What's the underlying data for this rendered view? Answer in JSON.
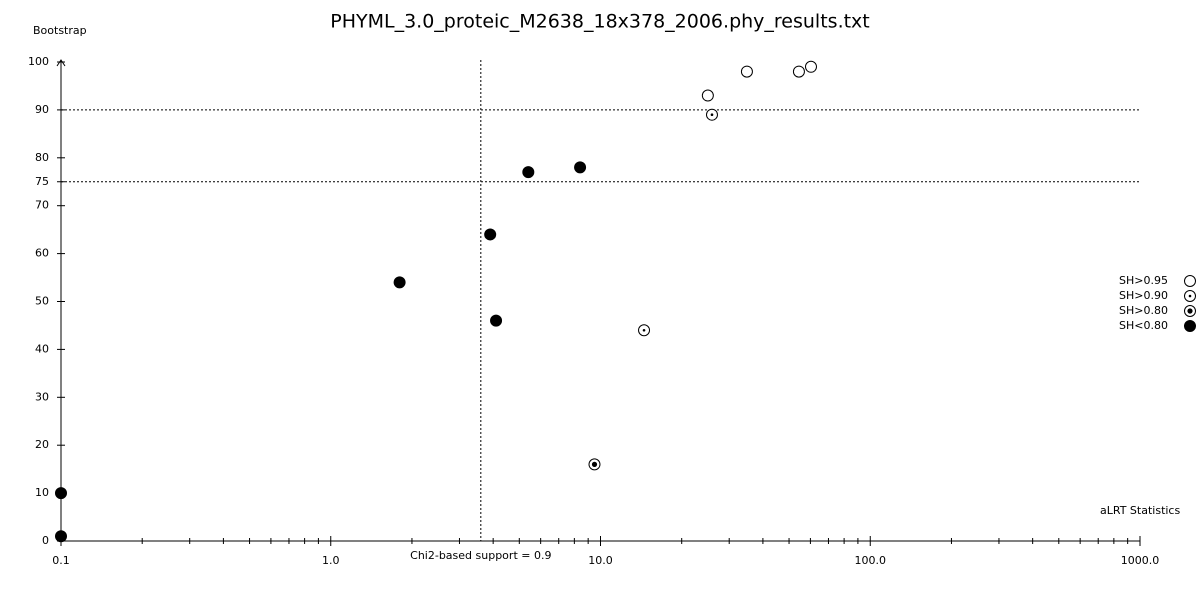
{
  "chart_data": {
    "type": "scatter",
    "title": "PHYML_3.0_proteic_M2638_18x378_2006.phy_results.txt",
    "y_label": "Bootstrap",
    "x_label": "aLRT Statistics",
    "xscale": "log",
    "xlim": [
      0.1,
      1000
    ],
    "ylim": [
      0,
      100
    ],
    "xticks": [
      0.1,
      {
        "value": 1,
        "label": "1.0"
      },
      {
        "value": 10,
        "label": "10.0"
      },
      {
        "value": 100,
        "label": "100.0"
      },
      {
        "value": 1000,
        "label": "1000.0"
      }
    ],
    "xminorticks": [
      0.2,
      0.3,
      0.4,
      0.5,
      0.6,
      0.7,
      0.8,
      0.9,
      2,
      3,
      4,
      5,
      6,
      7,
      8,
      9,
      20,
      30,
      40,
      50,
      60,
      70,
      80,
      90,
      200,
      300,
      400,
      500,
      600,
      700,
      800,
      900
    ],
    "yticks": [
      0,
      10,
      20,
      30,
      40,
      50,
      60,
      70,
      75,
      80,
      90,
      100
    ],
    "reference_lines": {
      "y": [
        90,
        75
      ],
      "x": 3.6,
      "x_label": "Chi2-based support = 0.9"
    },
    "legend": "right",
    "series": [
      {
        "name": "SH>0.95",
        "marker": "open",
        "color": "#000000",
        "x": [
          25.0,
          34.9,
          54.4,
          60.3
        ],
        "values": [
          93,
          98,
          98,
          99
        ]
      },
      {
        "name": "SH>0.90",
        "marker": "dot",
        "color": "#000000",
        "x": [
          25.9,
          14.5
        ],
        "values": [
          89,
          44
        ]
      },
      {
        "name": "SH>0.80",
        "marker": "bullseye",
        "color": "#000000",
        "x": [
          9.5
        ],
        "values": [
          16
        ]
      },
      {
        "name": "SH<0.80",
        "marker": "filled",
        "color": "#000000",
        "x": [
          0.1,
          0.1,
          1.8,
          3.9,
          4.1,
          5.4,
          8.4
        ],
        "values": [
          10,
          1,
          54,
          64,
          46,
          77,
          78
        ]
      }
    ]
  }
}
